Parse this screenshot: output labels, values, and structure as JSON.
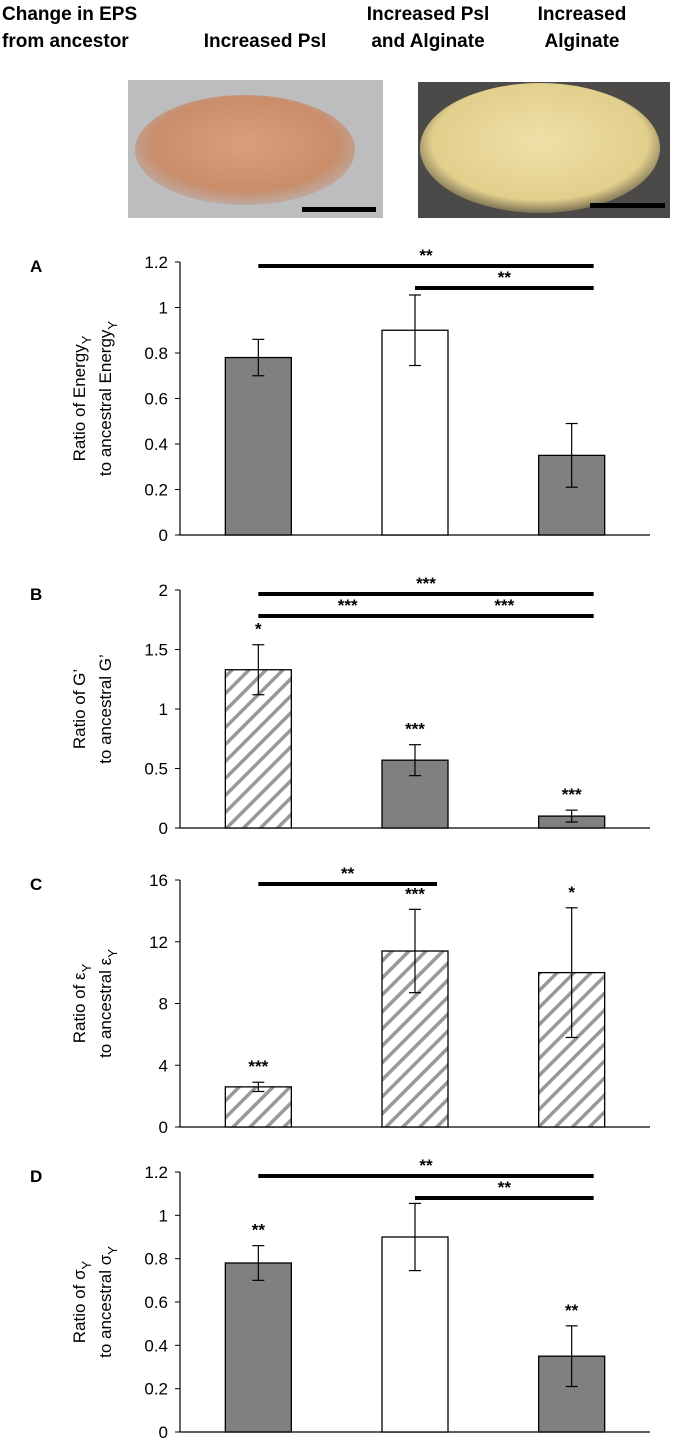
{
  "header": {
    "title": [
      "Change in EPS",
      "from ancestor"
    ],
    "columns": [
      [
        "Increased Psl"
      ],
      [
        "Increased Psl",
        "and Alginate"
      ],
      [
        "Increased",
        "Alginate"
      ]
    ]
  },
  "chart_data": [
    {
      "type": "bar",
      "label": "A",
      "ylabel": [
        {
          "text": "Ratio of Energy",
          "sub": "Y"
        },
        {
          "text": "to ancestral Energy",
          "sub": "Y"
        }
      ],
      "categories": [
        null,
        null,
        null
      ],
      "values": [
        0.78,
        0.9,
        0.35
      ],
      "errors": [
        0.08,
        0.155,
        0.14
      ],
      "colors": [
        "#808080",
        "#ffffff",
        "#808080"
      ],
      "hatched": [
        false,
        false,
        false
      ],
      "annotations": [
        null,
        null,
        null
      ],
      "brackets": [
        {
          "from": 0,
          "to": 2,
          "label": "**"
        },
        {
          "from": 1,
          "to": 2,
          "label": "**"
        }
      ],
      "ylim": [
        0,
        1.2
      ],
      "yticks": [
        0,
        0.2,
        0.4,
        0.6,
        0.8,
        1,
        1.2
      ]
    },
    {
      "type": "bar",
      "label": "B",
      "ylabel": [
        {
          "text": "Ratio of G’"
        },
        {
          "text": "to ancestral G’"
        }
      ],
      "categories": [
        null,
        null,
        null
      ],
      "values": [
        1.33,
        0.57,
        0.1
      ],
      "errors": [
        0.21,
        0.13,
        0.05
      ],
      "colors": [
        "#ffffff",
        "#808080",
        "#808080"
      ],
      "hatched": [
        true,
        false,
        false
      ],
      "annotations": [
        "*",
        "***",
        "***"
      ],
      "brackets": [
        {
          "from": 0,
          "to": 2,
          "label": "***"
        },
        {
          "from": 0,
          "to": 1,
          "label": "***"
        },
        {
          "from": 1,
          "to": 2,
          "label": "***"
        }
      ],
      "ylim": [
        0,
        2
      ],
      "yticks": [
        0,
        0.5,
        1,
        1.5,
        2
      ]
    },
    {
      "type": "bar",
      "label": "C",
      "ylabel": [
        {
          "text": "Ratio of ε",
          "sub": "Y"
        },
        {
          "text": "to ancestral ε",
          "sub": "Y"
        }
      ],
      "categories": [
        null,
        null,
        null
      ],
      "values": [
        2.6,
        11.4,
        10.0
      ],
      "errors": [
        0.3,
        2.7,
        4.2
      ],
      "colors": [
        "#ffffff",
        "#ffffff",
        "#ffffff"
      ],
      "hatched": [
        true,
        true,
        true
      ],
      "annotations": [
        "***",
        "***",
        "*"
      ],
      "brackets": [
        {
          "from": 0,
          "to": 1,
          "label": "**"
        }
      ],
      "ylim": [
        0,
        16
      ],
      "yticks": [
        0,
        4,
        8,
        12,
        16
      ]
    },
    {
      "type": "bar",
      "label": "D",
      "ylabel": [
        {
          "text": "Ratio of σ",
          "sub": "Y"
        },
        {
          "text": "to ancestral σ",
          "sub": "Y"
        }
      ],
      "categories": [
        null,
        null,
        null
      ],
      "values": [
        0.78,
        0.9,
        0.35
      ],
      "errors": [
        0.08,
        0.155,
        0.14
      ],
      "colors": [
        "#808080",
        "#ffffff",
        "#808080"
      ],
      "hatched": [
        false,
        false,
        false
      ],
      "annotations": [
        "**",
        null,
        "**"
      ],
      "brackets": [
        {
          "from": 0,
          "to": 2,
          "label": "**"
        },
        {
          "from": 1,
          "to": 2,
          "label": "**"
        }
      ],
      "ylim": [
        0,
        1.2
      ],
      "yticks": [
        0,
        0.2,
        0.4,
        0.6,
        0.8,
        1,
        1.2
      ]
    }
  ]
}
